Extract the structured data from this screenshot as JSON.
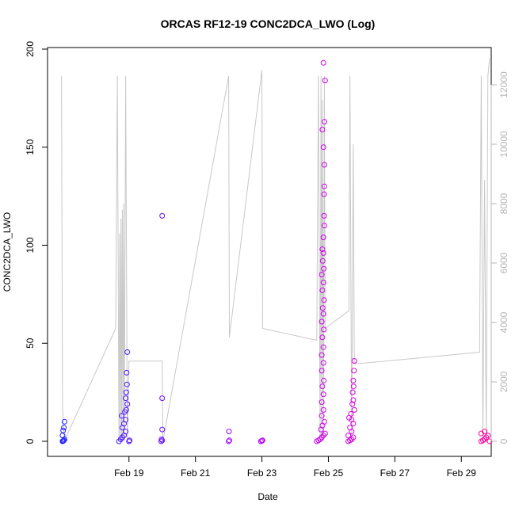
{
  "chart_data": {
    "type": "scatter",
    "title": "ORCAS RF12-19 CONC2DCA_LWO (Log)",
    "xlabel": "Date",
    "ylabel": "CONC2DCA_LWO",
    "xlim": [
      16.55,
      29.9
    ],
    "ylim": [
      0,
      200
    ],
    "y2lim": [
      0,
      13200
    ],
    "x_ticks": [
      {
        "value": 19,
        "label": "Feb 19"
      },
      {
        "value": 21,
        "label": "Feb 21"
      },
      {
        "value": 23,
        "label": "Feb 23"
      },
      {
        "value": 25,
        "label": "Feb 25"
      },
      {
        "value": 27,
        "label": "Feb 27"
      },
      {
        "value": 29,
        "label": "Feb 29"
      }
    ],
    "y_ticks": [
      0,
      50,
      100,
      150,
      200
    ],
    "y2_ticks": [
      0,
      2000,
      4000,
      6000,
      8000,
      10000,
      12000
    ],
    "colors": {
      "point_start": "#1f1fff",
      "point_mid": "#c000ff",
      "point_end": "#ff00a0",
      "secondary_line": "#c8c8c8",
      "right_axis": "#b5b5b5"
    },
    "series": [
      {
        "name": "CONC2DCA_LWO",
        "points": [
          [
            17.0,
            0
          ],
          [
            17.02,
            0.2
          ],
          [
            17.04,
            0.5
          ],
          [
            17.06,
            1
          ],
          [
            17.0,
            3
          ],
          [
            17.02,
            5.5
          ],
          [
            17.04,
            7
          ],
          [
            17.06,
            10
          ],
          [
            18.7,
            0
          ],
          [
            18.75,
            1
          ],
          [
            18.8,
            2
          ],
          [
            18.85,
            3
          ],
          [
            18.9,
            5
          ],
          [
            18.8,
            7
          ],
          [
            18.85,
            9
          ],
          [
            18.9,
            11
          ],
          [
            18.78,
            13
          ],
          [
            18.88,
            15
          ],
          [
            18.92,
            16
          ],
          [
            18.95,
            19
          ],
          [
            18.9,
            22
          ],
          [
            18.92,
            25
          ],
          [
            18.94,
            29
          ],
          [
            18.93,
            35
          ],
          [
            18.95,
            45.5
          ],
          [
            19.0,
            0
          ],
          [
            19.02,
            0.5
          ],
          [
            19.97,
            0
          ],
          [
            20.0,
            0.5
          ],
          [
            19.98,
            1
          ],
          [
            20.0,
            6
          ],
          [
            20.0,
            22
          ],
          [
            20.0,
            115
          ],
          [
            22.0,
            0
          ],
          [
            22.02,
            0.5
          ],
          [
            22.01,
            5
          ],
          [
            22.97,
            0
          ],
          [
            23.0,
            0.3
          ],
          [
            23.02,
            0.5
          ],
          [
            24.65,
            0
          ],
          [
            24.7,
            0.5
          ],
          [
            24.75,
            1
          ],
          [
            24.8,
            2
          ],
          [
            24.85,
            3
          ],
          [
            24.9,
            4
          ],
          [
            24.78,
            6
          ],
          [
            24.82,
            8
          ],
          [
            24.88,
            10
          ],
          [
            24.8,
            13
          ],
          [
            24.85,
            16
          ],
          [
            24.8,
            20
          ],
          [
            24.85,
            24
          ],
          [
            24.82,
            28
          ],
          [
            24.86,
            31
          ],
          [
            24.8,
            36
          ],
          [
            24.85,
            40
          ],
          [
            24.8,
            44
          ],
          [
            24.85,
            48
          ],
          [
            24.82,
            53
          ],
          [
            24.86,
            57
          ],
          [
            24.8,
            61
          ],
          [
            24.85,
            65
          ],
          [
            24.83,
            68
          ],
          [
            24.87,
            72
          ],
          [
            24.82,
            77
          ],
          [
            24.85,
            81
          ],
          [
            24.8,
            85
          ],
          [
            24.86,
            88
          ],
          [
            24.83,
            92
          ],
          [
            24.85,
            96
          ],
          [
            24.82,
            98
          ],
          [
            24.85,
            104
          ],
          [
            24.88,
            110
          ],
          [
            24.87,
            115
          ],
          [
            24.87,
            126
          ],
          [
            24.88,
            130
          ],
          [
            24.88,
            141
          ],
          [
            24.85,
            150
          ],
          [
            24.82,
            159
          ],
          [
            24.88,
            163
          ],
          [
            24.9,
            184
          ],
          [
            24.85,
            193
          ],
          [
            25.6,
            0
          ],
          [
            25.65,
            0.5
          ],
          [
            25.7,
            1
          ],
          [
            25.75,
            2
          ],
          [
            25.6,
            3
          ],
          [
            25.7,
            5
          ],
          [
            25.65,
            7
          ],
          [
            25.75,
            9
          ],
          [
            25.7,
            11
          ],
          [
            25.62,
            12
          ],
          [
            25.68,
            14
          ],
          [
            25.78,
            16
          ],
          [
            25.72,
            19
          ],
          [
            25.75,
            21
          ],
          [
            25.73,
            25
          ],
          [
            25.76,
            28
          ],
          [
            25.75,
            31
          ],
          [
            25.77,
            36
          ],
          [
            25.78,
            41
          ],
          [
            29.6,
            0
          ],
          [
            29.65,
            0.5
          ],
          [
            29.7,
            1
          ],
          [
            29.75,
            2
          ],
          [
            29.8,
            3
          ],
          [
            29.85,
            0
          ],
          [
            29.6,
            4
          ],
          [
            29.7,
            5
          ]
        ]
      },
      {
        "name": "secondary (right axis)",
        "axis": "right",
        "line": [
          [
            16.97,
            12300
          ],
          [
            17.0,
            1200
          ],
          [
            17.05,
            0
          ],
          [
            18.6,
            3800
          ],
          [
            18.65,
            12300
          ],
          [
            18.7,
            0
          ],
          [
            18.72,
            7000
          ],
          [
            18.74,
            0
          ],
          [
            18.76,
            7500
          ],
          [
            18.78,
            0
          ],
          [
            18.8,
            7800
          ],
          [
            18.82,
            0
          ],
          [
            18.84,
            8000
          ],
          [
            18.86,
            0
          ],
          [
            18.9,
            12300
          ],
          [
            18.95,
            0
          ],
          [
            19.0,
            2700
          ],
          [
            20.0,
            2700
          ],
          [
            20.02,
            0
          ],
          [
            22.0,
            12300
          ],
          [
            22.02,
            3500
          ],
          [
            23.0,
            12500
          ],
          [
            23.02,
            3800
          ],
          [
            24.65,
            3400
          ],
          [
            24.7,
            12300
          ],
          [
            24.75,
            0
          ],
          [
            24.78,
            12300
          ],
          [
            24.8,
            0
          ],
          [
            24.82,
            11500
          ],
          [
            24.85,
            0
          ],
          [
            24.88,
            12300
          ],
          [
            24.9,
            3800
          ],
          [
            25.62,
            4400
          ],
          [
            25.65,
            12300
          ],
          [
            25.7,
            0
          ],
          [
            25.75,
            10000
          ],
          [
            25.78,
            2600
          ],
          [
            29.55,
            3000
          ],
          [
            29.6,
            12300
          ],
          [
            29.65,
            0
          ],
          [
            29.7,
            8800
          ],
          [
            29.75,
            0
          ],
          [
            29.8,
            12300
          ],
          [
            29.85,
            12900
          ]
        ]
      }
    ]
  }
}
